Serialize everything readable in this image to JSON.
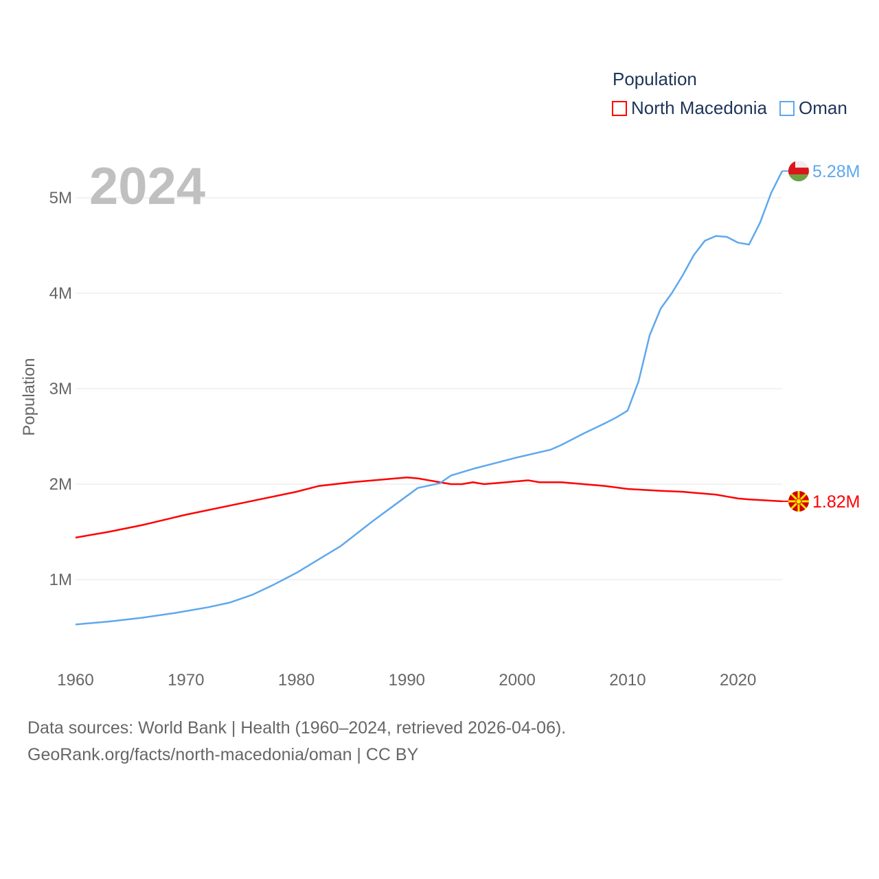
{
  "chart_data": {
    "type": "line",
    "title": "Population",
    "ylabel": "Population",
    "xlabel": "",
    "xlim": [
      1960,
      2024
    ],
    "ylim": [
      0,
      5.3
    ],
    "y_unit": "M",
    "x_ticks": [
      "1960",
      "1970",
      "1980",
      "1990",
      "2000",
      "2010",
      "2020"
    ],
    "y_ticks": [
      "1M",
      "2M",
      "3M",
      "4M",
      "5M"
    ],
    "year_label": "2024",
    "legend_placement": "top-right",
    "series": [
      {
        "name": "North Macedonia",
        "color": "#ff0000",
        "end_label": "1.82M",
        "flag": "north-macedonia-flag",
        "x": [
          1960,
          1963,
          1966,
          1970,
          1975,
          1980,
          1982,
          1985,
          1990,
          1991,
          1992,
          1993,
          1994,
          1995,
          1996,
          1997,
          1998,
          2000,
          2001,
          2002,
          2003,
          2004,
          2005,
          2008,
          2010,
          2013,
          2015,
          2018,
          2019,
          2020,
          2021,
          2024
        ],
        "values": [
          1.44,
          1.5,
          1.57,
          1.68,
          1.8,
          1.92,
          1.98,
          2.02,
          2.07,
          2.06,
          2.04,
          2.02,
          2.0,
          2.0,
          2.02,
          2.0,
          2.01,
          2.03,
          2.04,
          2.02,
          2.02,
          2.02,
          2.01,
          1.98,
          1.95,
          1.93,
          1.92,
          1.89,
          1.87,
          1.85,
          1.84,
          1.82
        ]
      },
      {
        "name": "Oman",
        "color": "#5ea8ed",
        "end_label": "5.28M",
        "flag": "oman-flag",
        "x": [
          1960,
          1963,
          1966,
          1969,
          1972,
          1974,
          1976,
          1978,
          1980,
          1982,
          1984,
          1985,
          1987,
          1989,
          1991,
          1993,
          1994,
          1996,
          1998,
          2000,
          2003,
          2004,
          2006,
          2008,
          2009,
          2010,
          2011,
          2012,
          2013,
          2014,
          2015,
          2016,
          2017,
          2018,
          2019,
          2020,
          2021,
          2022,
          2023,
          2024
        ],
        "values": [
          0.53,
          0.56,
          0.6,
          0.65,
          0.71,
          0.76,
          0.84,
          0.95,
          1.07,
          1.21,
          1.35,
          1.44,
          1.62,
          1.79,
          1.96,
          2.01,
          2.09,
          2.16,
          2.22,
          2.28,
          2.36,
          2.41,
          2.53,
          2.64,
          2.7,
          2.77,
          3.08,
          3.56,
          3.84,
          4.0,
          4.19,
          4.4,
          4.55,
          4.6,
          4.59,
          4.53,
          4.51,
          4.74,
          5.05,
          5.28
        ]
      }
    ]
  },
  "legend": {
    "title": "Population",
    "items": [
      "North Macedonia",
      "Oman"
    ]
  },
  "footer": {
    "line1": "Data sources: World Bank | Health (1960–2024, retrieved 2026-04-06).",
    "line2": "GeoRank.org/facts/north-macedonia/oman | CC BY"
  }
}
